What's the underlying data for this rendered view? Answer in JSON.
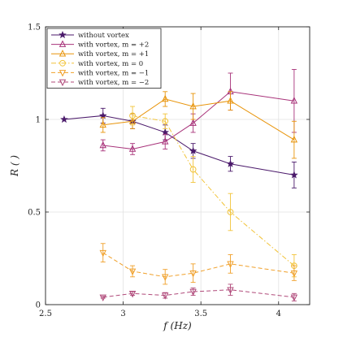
{
  "chart_data": {
    "type": "line",
    "xlabel": "f (Hz)",
    "ylabel": "R ( )",
    "xlim": [
      2.5,
      4.2
    ],
    "ylim": [
      0,
      1.5
    ],
    "xticks": [
      2.5,
      3,
      3.5,
      4
    ],
    "xtick_labels": [
      "2.5",
      "3",
      "3.5",
      "4"
    ],
    "yticks": [
      0,
      0.5,
      1,
      1.5
    ],
    "ytick_labels": [
      "0",
      "0.5",
      "1",
      "1.5"
    ],
    "grid": true,
    "legend_position": "top-left",
    "series": [
      {
        "name": "without vortex",
        "color": "#4b1a6b",
        "marker": "star",
        "dash": "solid",
        "x": [
          2.62,
          2.87,
          3.06,
          3.27,
          3.45,
          3.69,
          4.1
        ],
        "y": [
          1.0,
          1.02,
          0.99,
          0.93,
          0.83,
          0.76,
          0.7
        ],
        "err": [
          0.0,
          0.04,
          0.04,
          0.04,
          0.04,
          0.04,
          0.07
        ]
      },
      {
        "name": "with vortex, m = +2",
        "color": "#a8337a",
        "marker": "triangle-up",
        "dash": "solid",
        "x": [
          2.87,
          3.06,
          3.27,
          3.45,
          3.69,
          4.1
        ],
        "y": [
          0.86,
          0.84,
          0.88,
          0.98,
          1.15,
          1.1
        ],
        "err": [
          0.03,
          0.03,
          0.04,
          0.05,
          0.1,
          0.17
        ]
      },
      {
        "name": "with vortex, m = +1",
        "color": "#e8940a",
        "marker": "triangle-up",
        "dash": "solid",
        "x": [
          2.87,
          3.06,
          3.27,
          3.45,
          3.69,
          4.1
        ],
        "y": [
          0.97,
          0.99,
          1.11,
          1.07,
          1.1,
          0.89
        ],
        "err": [
          0.04,
          0.04,
          0.04,
          0.07,
          0.05,
          0.1
        ]
      },
      {
        "name": "with vortex, m = 0",
        "color": "#f2c43a",
        "marker": "circle",
        "dash": "dashdot",
        "x": [
          3.06,
          3.27,
          3.45,
          3.69,
          4.1
        ],
        "y": [
          1.02,
          0.99,
          0.73,
          0.5,
          0.21
        ],
        "err": [
          0.05,
          0.04,
          0.07,
          0.1,
          0.06
        ]
      },
      {
        "name": "with vortex, m = −1",
        "color": "#f0a02a",
        "marker": "triangle-down",
        "dash": "dashed",
        "x": [
          2.87,
          3.06,
          3.27,
          3.45,
          3.69,
          4.1
        ],
        "y": [
          0.28,
          0.18,
          0.15,
          0.17,
          0.22,
          0.17
        ],
        "err": [
          0.05,
          0.03,
          0.04,
          0.05,
          0.05,
          0.04
        ]
      },
      {
        "name": "with vortex, m = −2",
        "color": "#b04a7a",
        "marker": "triangle-down",
        "dash": "dashed",
        "x": [
          2.87,
          3.06,
          3.27,
          3.45,
          3.69,
          4.1
        ],
        "y": [
          0.04,
          0.06,
          0.05,
          0.07,
          0.08,
          0.04
        ],
        "err": [
          0.005,
          0.01,
          0.015,
          0.02,
          0.03,
          0.02
        ]
      }
    ]
  }
}
